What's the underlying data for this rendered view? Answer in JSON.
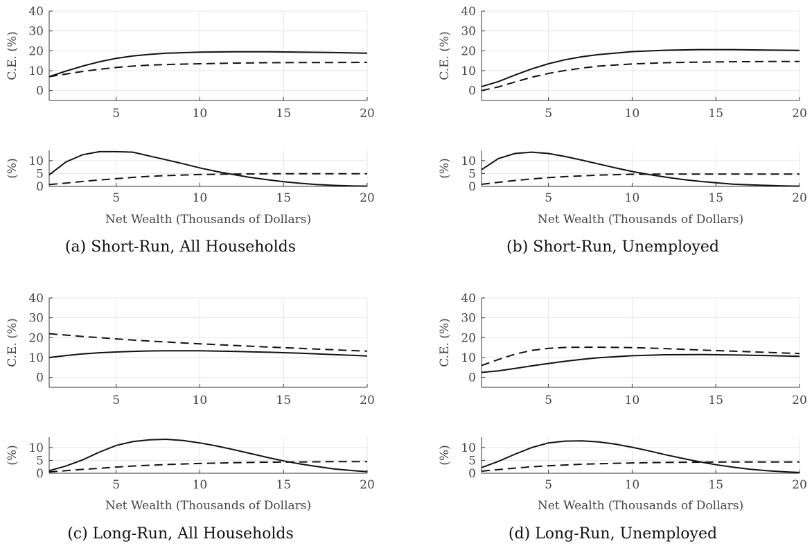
{
  "chart_data": [
    {
      "id": "a",
      "caption": "(a) Short-Run, All Households",
      "top": {
        "type": "line",
        "ylabel": "C.E. (%)",
        "xlim": [
          1,
          20
        ],
        "ylim": [
          -5,
          40
        ],
        "xticks": [
          "5",
          "10",
          "15",
          "20"
        ],
        "yticks": [
          "0",
          "10",
          "20",
          "30",
          "40"
        ],
        "series": [
          {
            "style": "solid",
            "x": [
              1,
              2,
              3,
              4,
              5,
              6,
              7,
              8,
              10,
              12,
              14,
              16,
              18,
              20
            ],
            "y": [
              7,
              9.8,
              12.3,
              14.5,
              16.2,
              17.4,
              18.2,
              18.8,
              19.3,
              19.5,
              19.5,
              19.3,
              19.1,
              18.8
            ]
          },
          {
            "style": "dashed",
            "x": [
              1,
              2,
              3,
              4,
              5,
              6,
              7,
              8,
              10,
              12,
              14,
              16,
              18,
              20
            ],
            "y": [
              7,
              8.3,
              9.6,
              10.7,
              11.6,
              12.3,
              12.8,
              13.1,
              13.5,
              13.8,
              14,
              14.1,
              14.1,
              14.2
            ]
          }
        ]
      },
      "bottom": {
        "type": "line",
        "ylabel": "(%)",
        "xlabel": "Net Wealth (Thousands of Dollars)",
        "xlim": [
          1,
          20
        ],
        "ylim": [
          0,
          14
        ],
        "xticks": [
          "5",
          "10",
          "15",
          "20"
        ],
        "yticks": [
          "0",
          "5",
          "10"
        ],
        "series": [
          {
            "style": "solid",
            "x": [
              1,
              2,
              3,
              4,
              5,
              6,
              7,
              8,
              9,
              10,
              11,
              12,
              13,
              14,
              15,
              16,
              17,
              18,
              19,
              20
            ],
            "y": [
              4.5,
              9.5,
              12.3,
              13.5,
              13.5,
              13.3,
              11.8,
              10.3,
              8.8,
              7.2,
              5.8,
              4.6,
              3.5,
              2.6,
              1.8,
              1.2,
              0.7,
              0.4,
              0.2,
              0.1
            ]
          },
          {
            "style": "dashed",
            "x": [
              1,
              2,
              3,
              4,
              5,
              6,
              7,
              8,
              10,
              12,
              14,
              16,
              18,
              20
            ],
            "y": [
              0.7,
              1.3,
              1.9,
              2.5,
              3,
              3.5,
              3.9,
              4.2,
              4.6,
              4.8,
              4.9,
              4.9,
              4.9,
              4.9
            ]
          }
        ]
      }
    },
    {
      "id": "b",
      "caption": "(b) Short-Run, Unemployed",
      "top": {
        "type": "line",
        "ylabel": "C.E. (%)",
        "xlim": [
          1,
          20
        ],
        "ylim": [
          -5,
          40
        ],
        "xticks": [
          "5",
          "10",
          "15",
          "20"
        ],
        "yticks": [
          "0",
          "10",
          "20",
          "30",
          "40"
        ],
        "series": [
          {
            "style": "solid",
            "x": [
              1,
              2,
              3,
              4,
              5,
              6,
              7,
              8,
              10,
              12,
              14,
              16,
              18,
              20
            ],
            "y": [
              2,
              4.5,
              7.8,
              10.9,
              13.5,
              15.5,
              17,
              18.1,
              19.6,
              20.3,
              20.6,
              20.6,
              20.4,
              20.2
            ]
          },
          {
            "style": "dashed",
            "x": [
              1,
              2,
              3,
              4,
              5,
              6,
              7,
              8,
              10,
              12,
              14,
              16,
              18,
              20
            ],
            "y": [
              0,
              1.8,
              4.3,
              6.7,
              8.6,
              10.1,
              11.3,
              12.3,
              13.4,
              14,
              14.3,
              14.5,
              14.6,
              14.6
            ]
          }
        ]
      },
      "bottom": {
        "type": "line",
        "ylabel": "(%)",
        "xlabel": "Net Wealth (Thousands of Dollars)",
        "xlim": [
          1,
          20
        ],
        "ylim": [
          0,
          14
        ],
        "xticks": [
          "5",
          "10",
          "15",
          "20"
        ],
        "yticks": [
          "0",
          "5",
          "10"
        ],
        "series": [
          {
            "style": "solid",
            "x": [
              1,
              2,
              3,
              4,
              5,
              6,
              7,
              8,
              9,
              10,
              11,
              12,
              13,
              14,
              15,
              16,
              17,
              18,
              19,
              20
            ],
            "y": [
              6.5,
              10.8,
              12.8,
              13.3,
              12.8,
              11.6,
              10.2,
              8.7,
              7.2,
              5.8,
              4.6,
              3.6,
              2.7,
              2,
              1.4,
              0.9,
              0.6,
              0.4,
              0.2,
              0.1
            ]
          },
          {
            "style": "dashed",
            "x": [
              1,
              2,
              3,
              4,
              5,
              6,
              7,
              8,
              10,
              12,
              14,
              16,
              18,
              20
            ],
            "y": [
              0.8,
              1.6,
              2.3,
              2.9,
              3.4,
              3.8,
              4.1,
              4.4,
              4.7,
              4.8,
              4.8,
              4.8,
              4.8,
              4.8
            ]
          }
        ]
      }
    },
    {
      "id": "c",
      "caption": "(c) Long-Run, All Households",
      "top": {
        "type": "line",
        "ylabel": "C.E. (%)",
        "xlim": [
          1,
          20
        ],
        "ylim": [
          -5,
          40
        ],
        "xticks": [
          "5",
          "10",
          "15",
          "20"
        ],
        "yticks": [
          "0",
          "10",
          "20",
          "30",
          "40"
        ],
        "series": [
          {
            "style": "solid",
            "x": [
              1,
              2,
              3,
              4,
              5,
              6,
              7,
              8,
              10,
              12,
              14,
              16,
              18,
              20
            ],
            "y": [
              10,
              11,
              11.8,
              12.4,
              12.8,
              13.1,
              13.3,
              13.4,
              13.4,
              13.1,
              12.7,
              12.2,
              11.5,
              10.8
            ]
          },
          {
            "style": "dashed",
            "x": [
              1,
              2,
              3,
              4,
              5,
              6,
              7,
              8,
              10,
              12,
              14,
              16,
              18,
              20
            ],
            "y": [
              22,
              21.3,
              20.6,
              20,
              19.4,
              18.8,
              18.3,
              17.8,
              16.9,
              16.1,
              15.3,
              14.6,
              13.9,
              13.2
            ]
          }
        ]
      },
      "bottom": {
        "type": "line",
        "ylabel": "(%)",
        "xlabel": "Net Wealth (Thousands of Dollars)",
        "xlim": [
          1,
          20
        ],
        "ylim": [
          0,
          14
        ],
        "xticks": [
          "5",
          "10",
          "15",
          "20"
        ],
        "yticks": [
          "0",
          "5",
          "10"
        ],
        "series": [
          {
            "style": "solid",
            "x": [
              1,
              2,
              3,
              4,
              5,
              6,
              7,
              8,
              9,
              10,
              11,
              12,
              13,
              14,
              15,
              16,
              17,
              18,
              19,
              20
            ],
            "y": [
              1,
              2.8,
              5.2,
              8.2,
              10.8,
              12.3,
              13,
              13.2,
              12.7,
              11.8,
              10.6,
              9.2,
              7.7,
              6.2,
              4.8,
              3.6,
              2.6,
              1.7,
              1.1,
              0.6
            ]
          },
          {
            "style": "dashed",
            "x": [
              1,
              2,
              3,
              4,
              5,
              6,
              7,
              8,
              10,
              12,
              14,
              16,
              18,
              20
            ],
            "y": [
              0.5,
              1,
              1.5,
              1.9,
              2.4,
              2.8,
              3.1,
              3.4,
              3.8,
              4.1,
              4.3,
              4.4,
              4.5,
              4.5
            ]
          }
        ]
      }
    },
    {
      "id": "d",
      "caption": "(d) Long-Run, Unemployed",
      "top": {
        "type": "line",
        "ylabel": "C.E. (%)",
        "xlim": [
          1,
          20
        ],
        "ylim": [
          -5,
          40
        ],
        "xticks": [
          "5",
          "10",
          "15",
          "20"
        ],
        "yticks": [
          "0",
          "10",
          "20",
          "30",
          "40"
        ],
        "series": [
          {
            "style": "solid",
            "x": [
              1,
              2,
              3,
              4,
              5,
              6,
              7,
              8,
              10,
              12,
              14,
              16,
              18,
              20
            ],
            "y": [
              2.5,
              3.3,
              4.5,
              5.8,
              7,
              8.1,
              9.1,
              9.9,
              10.9,
              11.4,
              11.5,
              11.3,
              11,
              10.6
            ]
          },
          {
            "style": "dashed",
            "x": [
              1,
              2,
              3,
              4,
              5,
              6,
              7,
              8,
              10,
              12,
              14,
              16,
              18,
              20
            ],
            "y": [
              6,
              9,
              11.7,
              13.6,
              14.6,
              15.1,
              15.2,
              15.2,
              15,
              14.5,
              13.8,
              13.2,
              12.6,
              12
            ]
          }
        ]
      },
      "bottom": {
        "type": "line",
        "ylabel": "(%)",
        "xlabel": "Net Wealth (Thousands of Dollars)",
        "xlim": [
          1,
          20
        ],
        "ylim": [
          0,
          14
        ],
        "xticks": [
          "5",
          "10",
          "15",
          "20"
        ],
        "yticks": [
          "0",
          "5",
          "10"
        ],
        "series": [
          {
            "style": "solid",
            "x": [
              1,
              2,
              3,
              4,
              5,
              6,
              7,
              8,
              9,
              10,
              11,
              12,
              13,
              14,
              15,
              16,
              17,
              18,
              19,
              20
            ],
            "y": [
              2.2,
              4.6,
              7.4,
              10,
              11.8,
              12.5,
              12.6,
              12.2,
              11.3,
              10.1,
              8.7,
              7.2,
              5.8,
              4.5,
              3.3,
              2.4,
              1.6,
              1,
              0.6,
              0.3
            ]
          },
          {
            "style": "dashed",
            "x": [
              1,
              2,
              3,
              4,
              5,
              6,
              7,
              8,
              10,
              12,
              14,
              16,
              18,
              20
            ],
            "y": [
              0.8,
              1.4,
              2,
              2.5,
              2.9,
              3.2,
              3.5,
              3.7,
              4,
              4.2,
              4.3,
              4.4,
              4.4,
              4.4
            ]
          }
        ]
      }
    }
  ]
}
